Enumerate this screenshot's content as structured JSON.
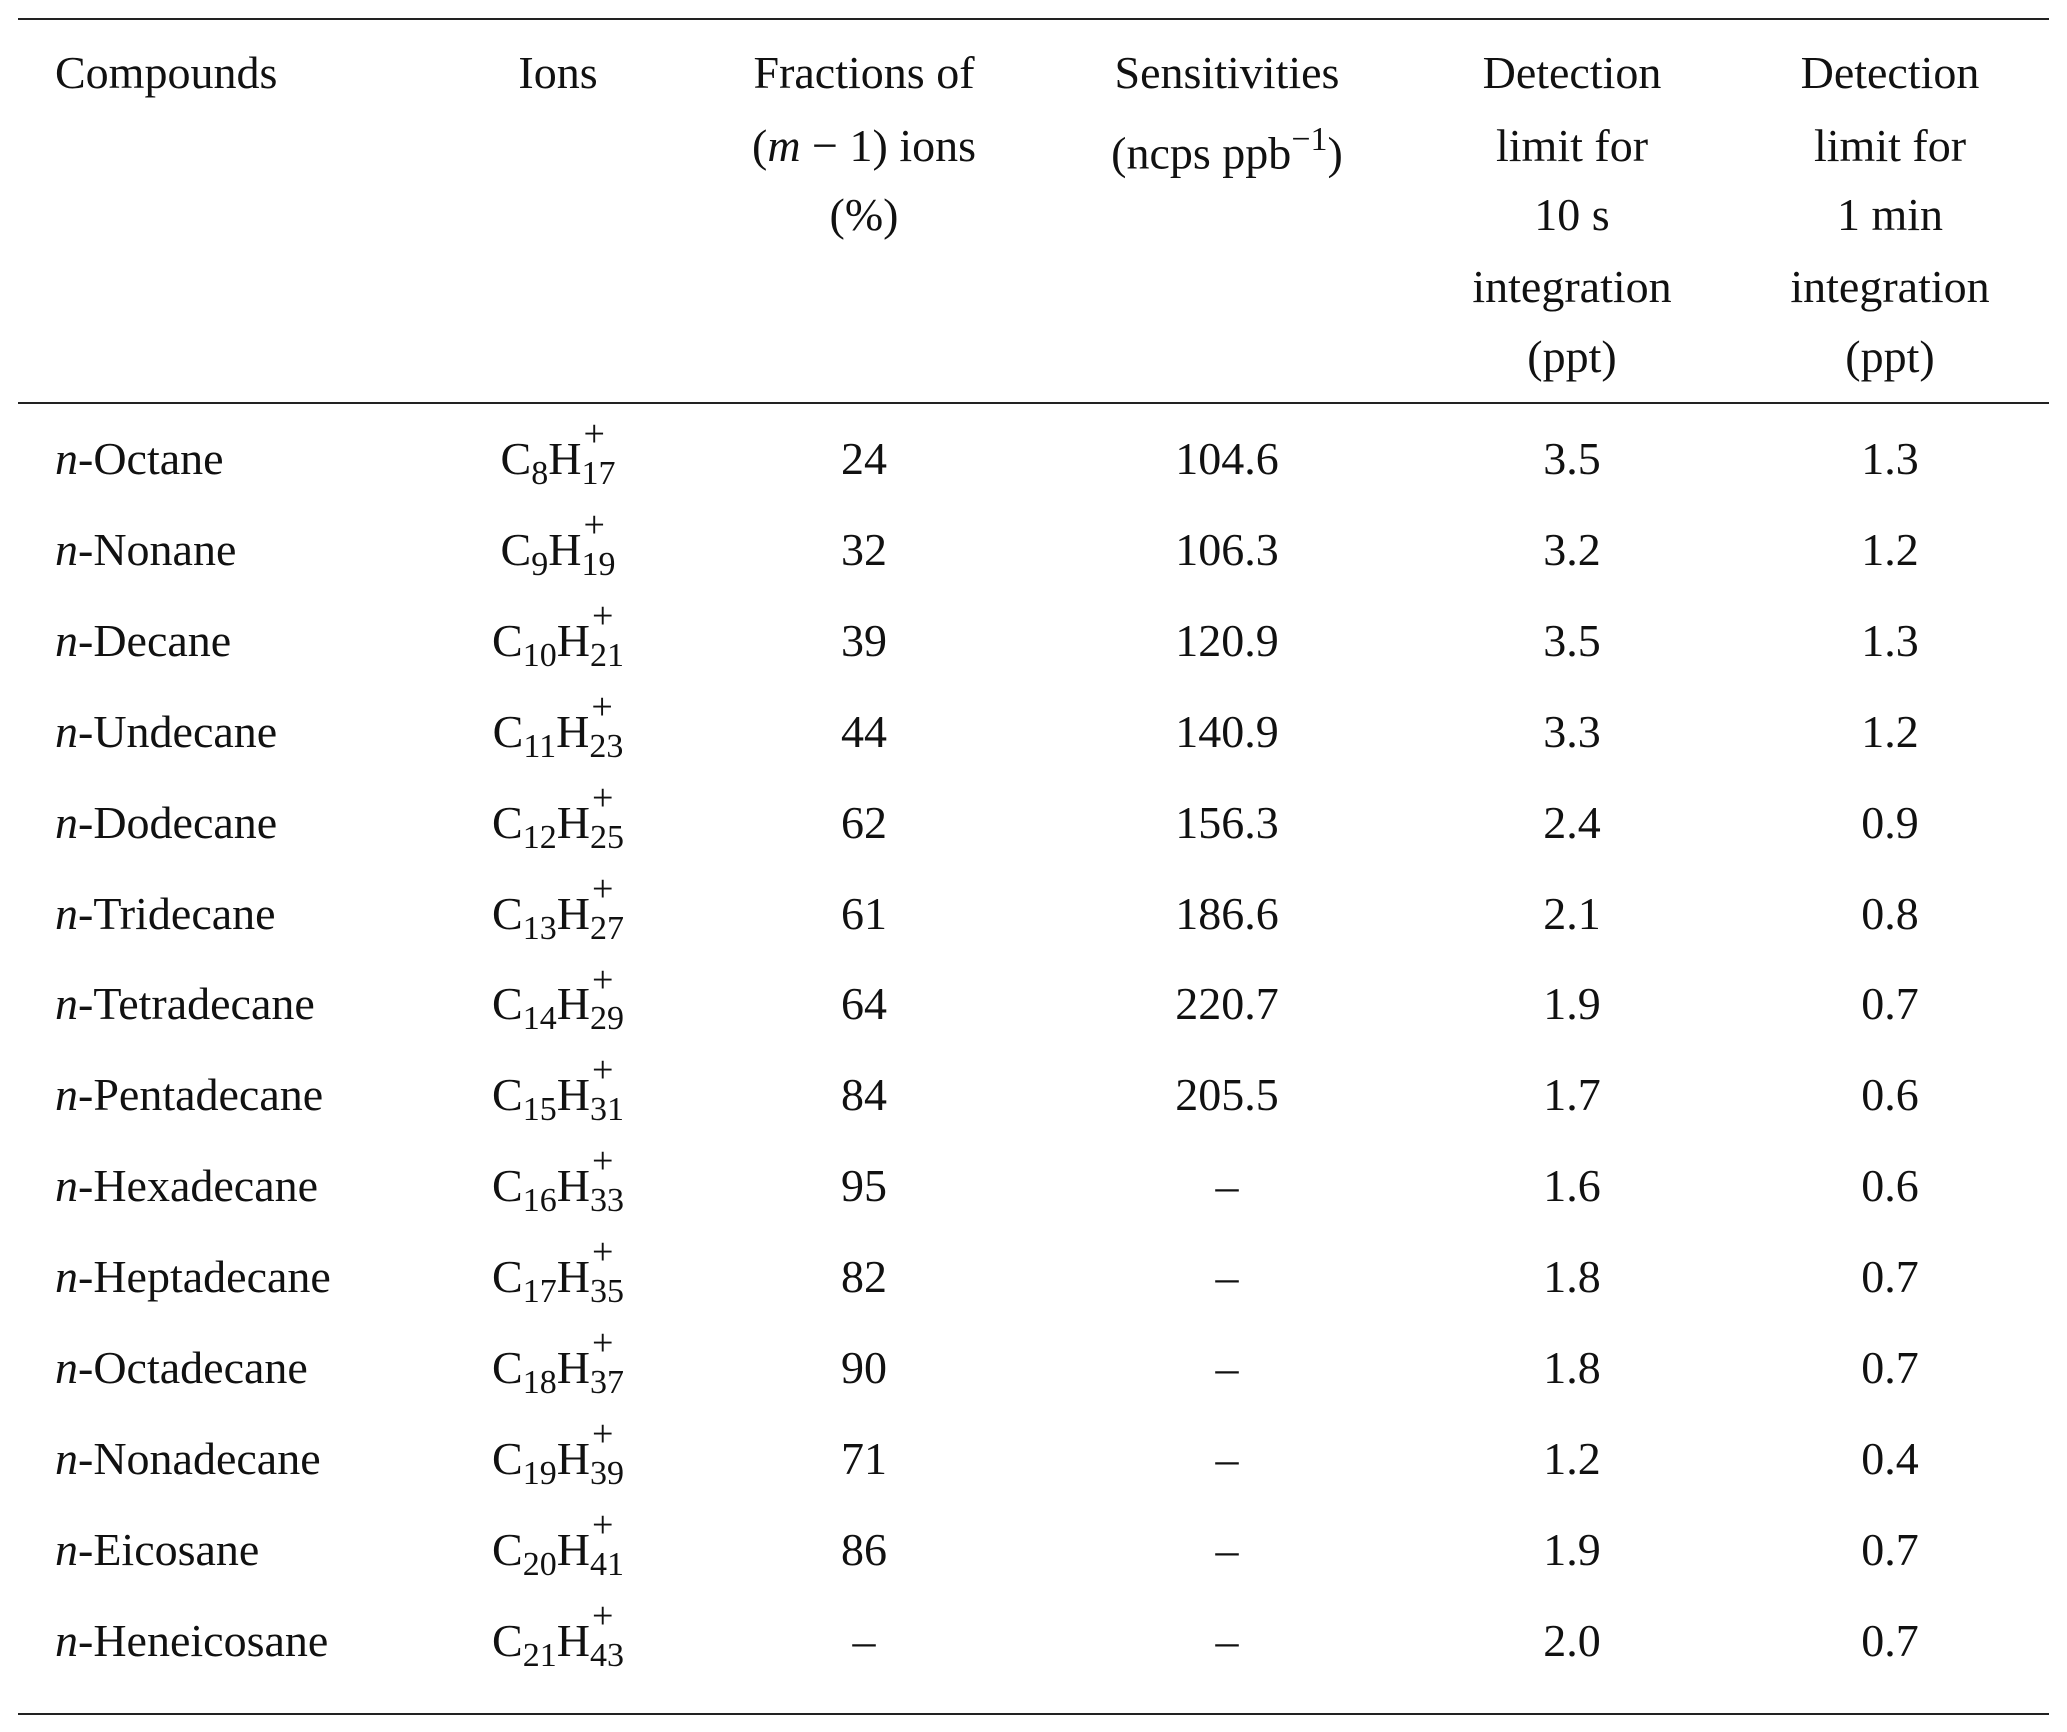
{
  "table": {
    "header": [
      [
        [
          {
            "text": "Compounds"
          }
        ]
      ],
      [
        [
          {
            "text": "Ions"
          }
        ]
      ],
      [
        [
          {
            "text": "Fractions of"
          }
        ],
        [
          {
            "text": "("
          },
          {
            "text": "m",
            "italic": true
          },
          {
            "text": " − 1) ions"
          }
        ],
        [
          {
            "text": "(%)"
          }
        ]
      ],
      [
        [
          {
            "text": "Sensitivities"
          }
        ],
        [
          {
            "text": "(ncps ppb"
          },
          {
            "text": "−1",
            "sup": true
          },
          {
            "text": ")"
          }
        ]
      ],
      [
        [
          {
            "text": "Detection"
          }
        ],
        [
          {
            "text": "limit for"
          }
        ],
        [
          {
            "text": "10 s"
          }
        ],
        [
          {
            "text": "integration"
          }
        ],
        [
          {
            "text": "(ppt)"
          }
        ]
      ],
      [
        [
          {
            "text": "Detection"
          }
        ],
        [
          {
            "text": "limit for"
          }
        ],
        [
          {
            "text": "1 min"
          }
        ],
        [
          {
            "text": "integration"
          }
        ],
        [
          {
            "text": "(ppt)"
          }
        ]
      ]
    ],
    "rows": [
      {
        "compound": {
          "prefix": "n",
          "name": "-Octane"
        },
        "ion": {
          "c": "C",
          "c_count": "8",
          "h": "H",
          "h_count": "17",
          "charge": "+"
        },
        "cells": [
          "24",
          "104.6",
          "3.5",
          "1.3"
        ]
      },
      {
        "compound": {
          "prefix": "n",
          "name": "-Nonane"
        },
        "ion": {
          "c": "C",
          "c_count": "9",
          "h": "H",
          "h_count": "19",
          "charge": "+"
        },
        "cells": [
          "32",
          "106.3",
          "3.2",
          "1.2"
        ]
      },
      {
        "compound": {
          "prefix": "n",
          "name": "-Decane"
        },
        "ion": {
          "c": "C",
          "c_count": "10",
          "h": "H",
          "h_count": "21",
          "charge": "+"
        },
        "cells": [
          "39",
          "120.9",
          "3.5",
          "1.3"
        ]
      },
      {
        "compound": {
          "prefix": "n",
          "name": "-Undecane"
        },
        "ion": {
          "c": "C",
          "c_count": "11",
          "h": "H",
          "h_count": "23",
          "charge": "+"
        },
        "cells": [
          "44",
          "140.9",
          "3.3",
          "1.2"
        ]
      },
      {
        "compound": {
          "prefix": "n",
          "name": "-Dodecane"
        },
        "ion": {
          "c": "C",
          "c_count": "12",
          "h": "H",
          "h_count": "25",
          "charge": "+"
        },
        "cells": [
          "62",
          "156.3",
          "2.4",
          "0.9"
        ]
      },
      {
        "compound": {
          "prefix": "n",
          "name": "-Tridecane"
        },
        "ion": {
          "c": "C",
          "c_count": "13",
          "h": "H",
          "h_count": "27",
          "charge": "+"
        },
        "cells": [
          "61",
          "186.6",
          "2.1",
          "0.8"
        ]
      },
      {
        "compound": {
          "prefix": "n",
          "name": "-Tetradecane"
        },
        "ion": {
          "c": "C",
          "c_count": "14",
          "h": "H",
          "h_count": "29",
          "charge": "+"
        },
        "cells": [
          "64",
          "220.7",
          "1.9",
          "0.7"
        ]
      },
      {
        "compound": {
          "prefix": "n",
          "name": "-Pentadecane"
        },
        "ion": {
          "c": "C",
          "c_count": "15",
          "h": "H",
          "h_count": "31",
          "charge": "+"
        },
        "cells": [
          "84",
          "205.5",
          "1.7",
          "0.6"
        ]
      },
      {
        "compound": {
          "prefix": "n",
          "name": "-Hexadecane"
        },
        "ion": {
          "c": "C",
          "c_count": "16",
          "h": "H",
          "h_count": "33",
          "charge": "+"
        },
        "cells": [
          "95",
          "–",
          "1.6",
          "0.6"
        ]
      },
      {
        "compound": {
          "prefix": "n",
          "name": "-Heptadecane"
        },
        "ion": {
          "c": "C",
          "c_count": "17",
          "h": "H",
          "h_count": "35",
          "charge": "+"
        },
        "cells": [
          "82",
          "–",
          "1.8",
          "0.7"
        ]
      },
      {
        "compound": {
          "prefix": "n",
          "name": "-Octadecane"
        },
        "ion": {
          "c": "C",
          "c_count": "18",
          "h": "H",
          "h_count": "37",
          "charge": "+"
        },
        "cells": [
          "90",
          "–",
          "1.8",
          "0.7"
        ]
      },
      {
        "compound": {
          "prefix": "n",
          "name": "-Nonadecane"
        },
        "ion": {
          "c": "C",
          "c_count": "19",
          "h": "H",
          "h_count": "39",
          "charge": "+"
        },
        "cells": [
          "71",
          "–",
          "1.2",
          "0.4"
        ]
      },
      {
        "compound": {
          "prefix": "n",
          "name": "-Eicosane"
        },
        "ion": {
          "c": "C",
          "c_count": "20",
          "h": "H",
          "h_count": "41",
          "charge": "+"
        },
        "cells": [
          "86",
          "–",
          "1.9",
          "0.7"
        ]
      },
      {
        "compound": {
          "prefix": "n",
          "name": "-Heneicosane"
        },
        "ion": {
          "c": "C",
          "c_count": "21",
          "h": "H",
          "h_count": "43",
          "charge": "+"
        },
        "cells": [
          "–",
          "–",
          "2.0",
          "0.7"
        ]
      }
    ]
  }
}
